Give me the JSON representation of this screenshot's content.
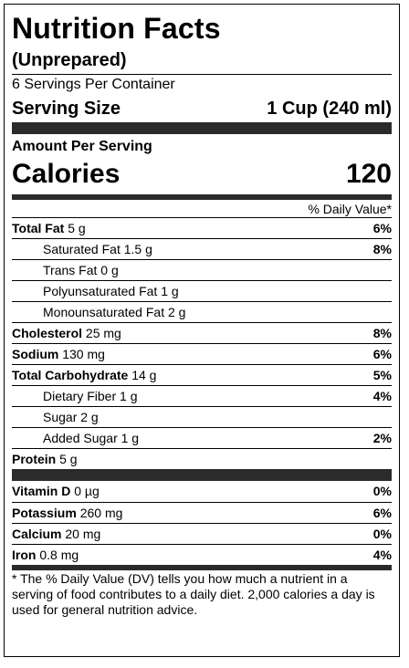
{
  "title": "Nutrition Facts",
  "subtitle": "(Unprepared)",
  "servings_per_container": "6 Servings Per Container",
  "serving_size": {
    "label": "Serving Size",
    "value": "1 Cup (240 ml)"
  },
  "amount_per_serving": "Amount Per Serving",
  "calories": {
    "label": "Calories",
    "value": "120"
  },
  "dv_header": "% Daily Value*",
  "nutrients": [
    {
      "name": "Total Fat",
      "amount": "5 g",
      "dv": "6%"
    },
    {
      "name": "Saturated Fat",
      "amount": "1.5 g",
      "dv": "8%"
    },
    {
      "name": "Trans Fat",
      "amount": "0 g",
      "dv": ""
    },
    {
      "name": "Polyunsaturated Fat",
      "amount": "1 g",
      "dv": ""
    },
    {
      "name": "Monounsaturated Fat",
      "amount": "2 g",
      "dv": ""
    },
    {
      "name": "Cholesterol",
      "amount": "25 mg",
      "dv": "8%"
    },
    {
      "name": "Sodium",
      "amount": "130 mg",
      "dv": "6%"
    },
    {
      "name": "Total Carbohydrate",
      "amount": "14 g",
      "dv": "5%"
    },
    {
      "name": "Dietary Fiber",
      "amount": "1 g",
      "dv": "4%"
    },
    {
      "name": "Sugar",
      "amount": "2 g",
      "dv": ""
    },
    {
      "name": "Added Sugar",
      "amount": "1 g",
      "dv": "2%"
    },
    {
      "name": "Protein",
      "amount": "5 g",
      "dv": ""
    }
  ],
  "vitamins": [
    {
      "name": "Vitamin D",
      "amount": "0 µg",
      "dv": "0%"
    },
    {
      "name": "Potassium",
      "amount": "260 mg",
      "dv": "6%"
    },
    {
      "name": "Calcium",
      "amount": "20 mg",
      "dv": "0%"
    },
    {
      "name": "Iron",
      "amount": "0.8 mg",
      "dv": "4%"
    }
  ],
  "footnote": "* The % Daily Value (DV) tells you how much a nutrient in a serving of food contributes to a daily diet. 2,000 calories a day is used for general nutrition advice."
}
